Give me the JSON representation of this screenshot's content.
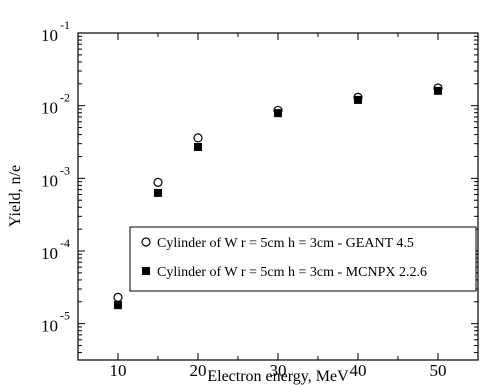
{
  "chart_data": {
    "type": "scatter",
    "xlabel": "Electron energy, MeV",
    "ylabel": "Yield, n/e",
    "xlim": [
      5,
      55
    ],
    "ylim_exponent": [
      -5.5,
      -1
    ],
    "yscale": "log",
    "x_ticks": [
      "10",
      "20",
      "30",
      "40",
      "50"
    ],
    "y_ticks": [
      {
        "base": "10",
        "exp": "-1",
        "value": -1
      },
      {
        "base": "10",
        "exp": "-2",
        "value": -2
      },
      {
        "base": "10",
        "exp": "-3",
        "value": -3
      },
      {
        "base": "10",
        "exp": "-4",
        "value": -4
      },
      {
        "base": "10",
        "exp": "-5",
        "value": -5
      }
    ],
    "grid": false,
    "legend_position": "lower-right",
    "series": [
      {
        "name": "Cylinder of W r = 5cm h = 3cm - GEANT 4.5",
        "marker": "open-circle",
        "color": "#000000",
        "x": [
          10,
          15,
          20,
          30,
          40,
          50
        ],
        "y": [
          2.3e-05,
          0.00088,
          0.0036,
          0.0086,
          0.013,
          0.0175
        ]
      },
      {
        "name": "Cylinder of W r = 5cm h = 3cm - MCNPX 2.2.6",
        "marker": "filled-square",
        "color": "#000000",
        "x": [
          10,
          15,
          20,
          30,
          40,
          50
        ],
        "y": [
          1.8e-05,
          0.00063,
          0.0027,
          0.0079,
          0.012,
          0.016
        ]
      }
    ]
  }
}
